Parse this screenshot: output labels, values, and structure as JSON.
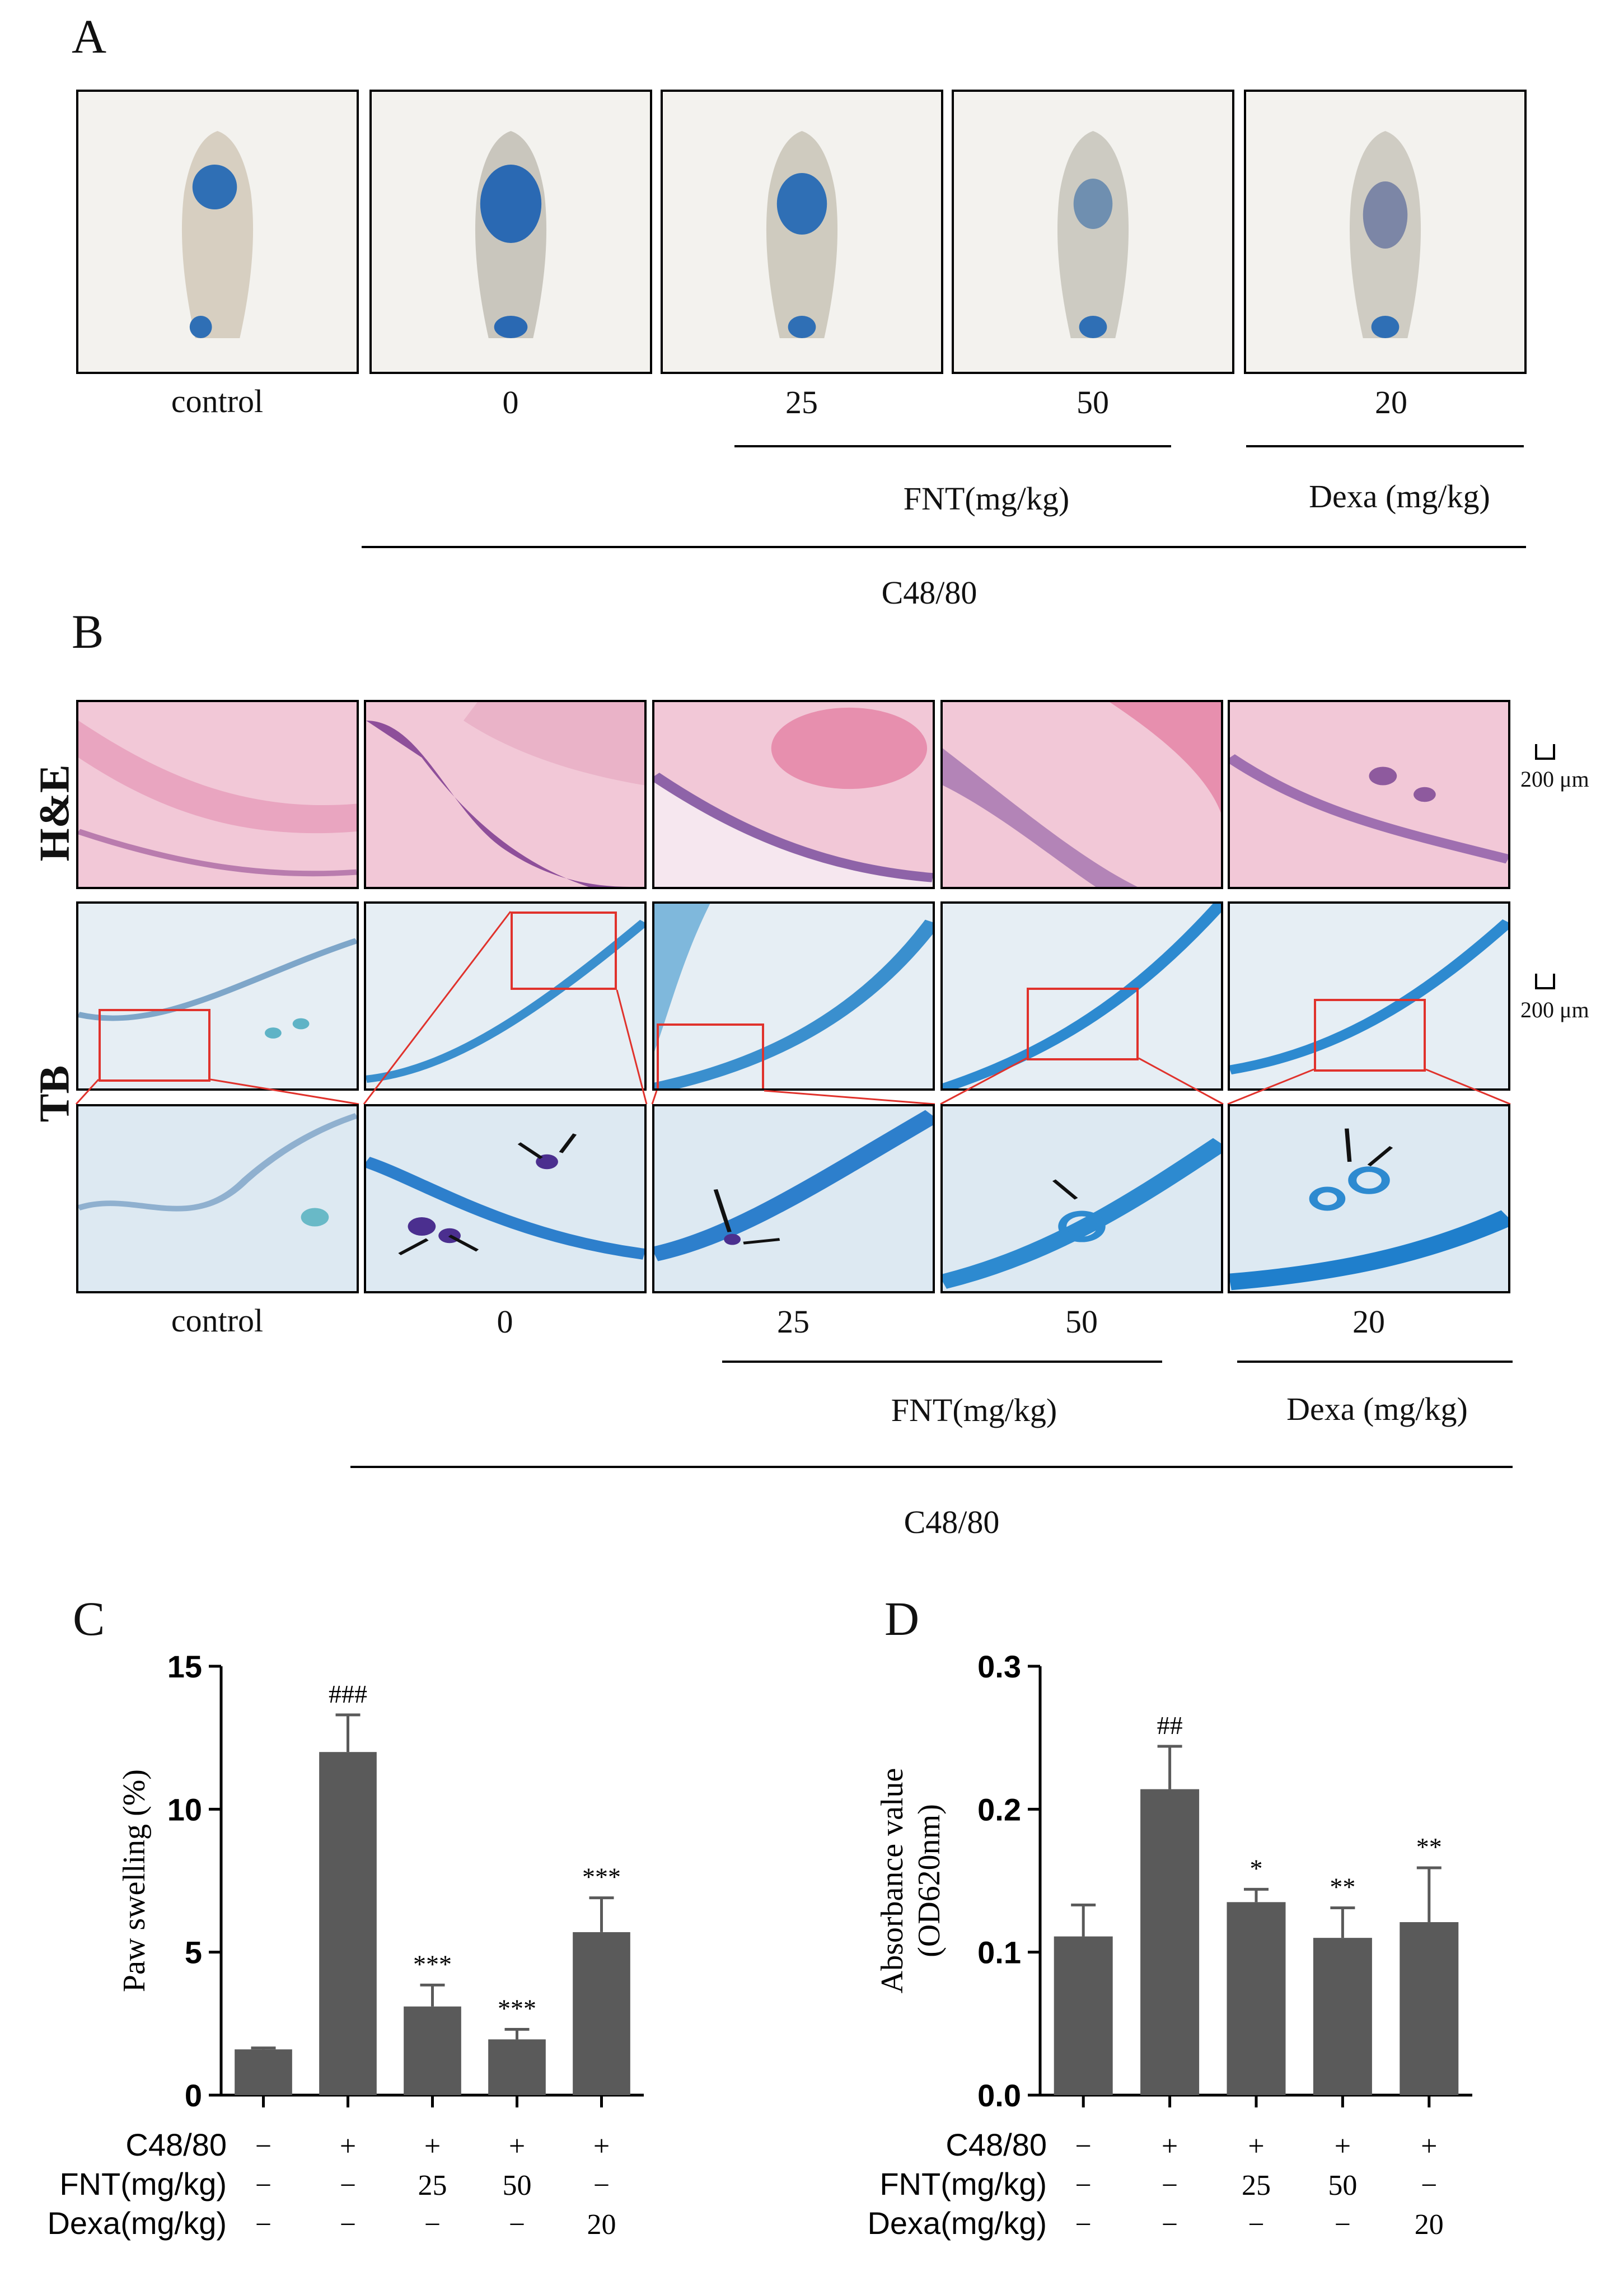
{
  "panels": {
    "a": {
      "letter": "A"
    },
    "b": {
      "letter": "B"
    },
    "c": {
      "letter": "C"
    },
    "d": {
      "letter": "D"
    }
  },
  "groups": [
    "control",
    "0",
    "25",
    "50",
    "20"
  ],
  "treatments": {
    "fnt": "FNT(mg/kg)",
    "dexa": "Dexa (mg/kg)",
    "c4880": "C48/80"
  },
  "rows": {
    "he": "H&E",
    "tb": "TB"
  },
  "scale_bar": "200 μm",
  "colors": {
    "bar": "#5a5a5a",
    "highlight_box": "#e0322c",
    "he_stain": "#f2c8d7",
    "tb_stain": "#e6eef4"
  },
  "condition_table": {
    "row_labels": [
      "C48/80",
      "FNT(mg/kg)",
      "Dexa(mg/kg)"
    ],
    "c4880": [
      "−",
      "+",
      "+",
      "+",
      "+"
    ],
    "fnt": [
      "−",
      "−",
      "25",
      "50",
      "−"
    ],
    "dexa": [
      "−",
      "−",
      "−",
      "−",
      "20"
    ]
  },
  "chart_data": [
    {
      "type": "bar",
      "categories": [
        "control",
        "0",
        "25",
        "50",
        "20"
      ],
      "values": [
        1.6,
        12.0,
        3.1,
        1.95,
        5.7
      ],
      "errors": [
        0.05,
        1.3,
        0.75,
        0.35,
        1.2
      ],
      "annotations": [
        "",
        "###",
        "***",
        "***",
        "***"
      ],
      "ylabel": "Paw swelling (%)",
      "ylim": [
        0,
        15
      ],
      "yticks": [
        0,
        5,
        10,
        15
      ],
      "ytick_labels": [
        "0",
        "5",
        "10",
        "15"
      ]
    },
    {
      "type": "bar",
      "categories": [
        "control",
        "0",
        "25",
        "50",
        "20"
      ],
      "values": [
        0.111,
        0.214,
        0.135,
        0.11,
        0.121
      ],
      "errors": [
        0.022,
        0.03,
        0.009,
        0.021,
        0.038
      ],
      "annotations": [
        "",
        "##",
        "*",
        "**",
        "**"
      ],
      "ylabel": "Absorbance value (OD620nm)",
      "ylabel_lines": [
        "Absorbance value",
        "(OD620nm)"
      ],
      "ylim": [
        0,
        0.3
      ],
      "yticks": [
        0,
        0.1,
        0.2,
        0.3
      ],
      "ytick_labels": [
        "0.0",
        "0.1",
        "0.2",
        "0.3"
      ]
    }
  ]
}
